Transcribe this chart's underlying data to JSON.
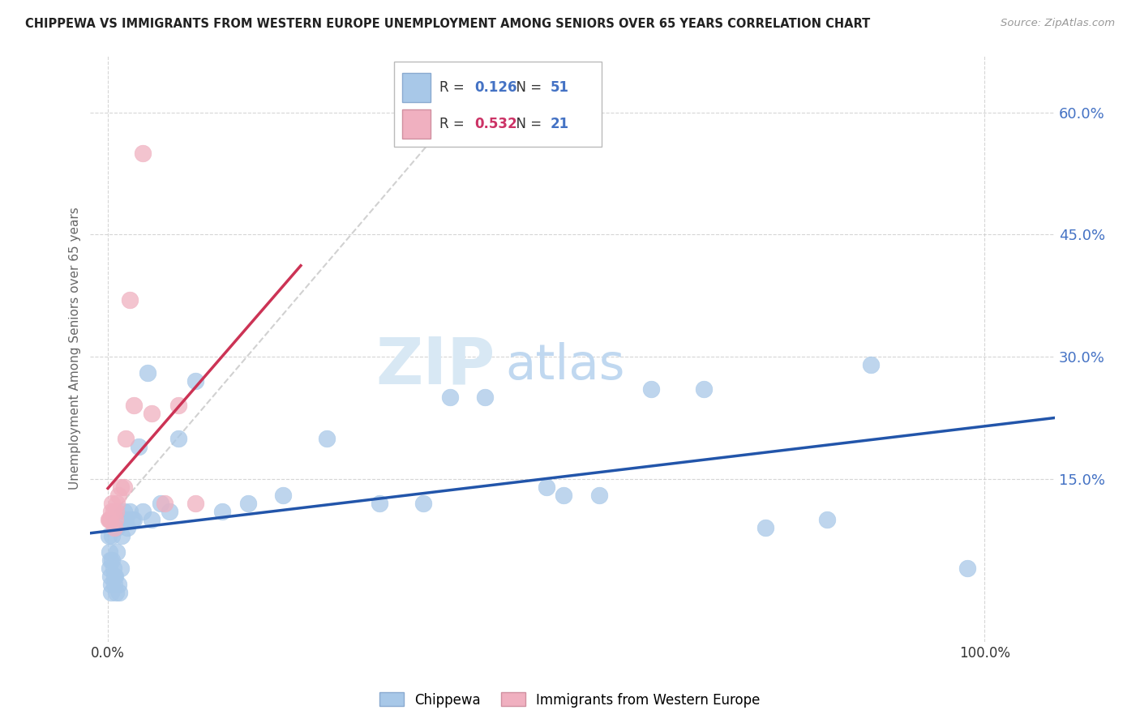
{
  "title": "CHIPPEWA VS IMMIGRANTS FROM WESTERN EUROPE UNEMPLOYMENT AMONG SENIORS OVER 65 YEARS CORRELATION CHART",
  "source": "Source: ZipAtlas.com",
  "ylabel": "Unemployment Among Seniors over 65 years",
  "xlim": [
    -0.02,
    1.08
  ],
  "ylim": [
    -0.05,
    0.67
  ],
  "yticks": [
    0.15,
    0.3,
    0.45,
    0.6
  ],
  "ytick_labels": [
    "15.0%",
    "30.0%",
    "45.0%",
    "60.0%"
  ],
  "xticks": [
    0.0,
    1.0
  ],
  "xtick_labels": [
    "0.0%",
    "100.0%"
  ],
  "blue_color": "#A8C8E8",
  "pink_color": "#F0B0C0",
  "blue_line_color": "#2255AA",
  "pink_line_color": "#CC3355",
  "ref_line_color": "#CCCCCC",
  "legend_blue_R": "0.126",
  "legend_blue_N": "51",
  "legend_pink_R": "0.532",
  "legend_pink_N": "21",
  "watermark_zip": "ZIP",
  "watermark_atlas": "atlas",
  "background_color": "#FFFFFF",
  "grid_color": "#CCCCCC",
  "blue_x": [
    0.001,
    0.002,
    0.002,
    0.003,
    0.003,
    0.004,
    0.004,
    0.005,
    0.005,
    0.006,
    0.007,
    0.007,
    0.008,
    0.009,
    0.01,
    0.01,
    0.012,
    0.013,
    0.015,
    0.016,
    0.018,
    0.02,
    0.022,
    0.025,
    0.028,
    0.03,
    0.035,
    0.04,
    0.045,
    0.05,
    0.06,
    0.07,
    0.08,
    0.1,
    0.13,
    0.16,
    0.2,
    0.25,
    0.31,
    0.36,
    0.39,
    0.43,
    0.5,
    0.52,
    0.56,
    0.62,
    0.68,
    0.75,
    0.82,
    0.87,
    0.98
  ],
  "blue_y": [
    0.08,
    0.06,
    0.04,
    0.05,
    0.03,
    0.02,
    0.01,
    0.08,
    0.05,
    0.04,
    0.03,
    0.02,
    0.03,
    0.01,
    0.09,
    0.06,
    0.02,
    0.01,
    0.04,
    0.08,
    0.11,
    0.1,
    0.09,
    0.11,
    0.1,
    0.1,
    0.19,
    0.11,
    0.28,
    0.1,
    0.12,
    0.11,
    0.2,
    0.27,
    0.11,
    0.12,
    0.13,
    0.2,
    0.12,
    0.12,
    0.25,
    0.25,
    0.14,
    0.13,
    0.13,
    0.26,
    0.26,
    0.09,
    0.1,
    0.29,
    0.04
  ],
  "pink_x": [
    0.001,
    0.002,
    0.003,
    0.004,
    0.005,
    0.006,
    0.007,
    0.008,
    0.009,
    0.01,
    0.012,
    0.015,
    0.018,
    0.02,
    0.025,
    0.03,
    0.04,
    0.05,
    0.065,
    0.08,
    0.1
  ],
  "pink_y": [
    0.1,
    0.1,
    0.1,
    0.11,
    0.12,
    0.11,
    0.09,
    0.1,
    0.11,
    0.12,
    0.13,
    0.14,
    0.14,
    0.2,
    0.37,
    0.24,
    0.55,
    0.23,
    0.12,
    0.24,
    0.12
  ]
}
